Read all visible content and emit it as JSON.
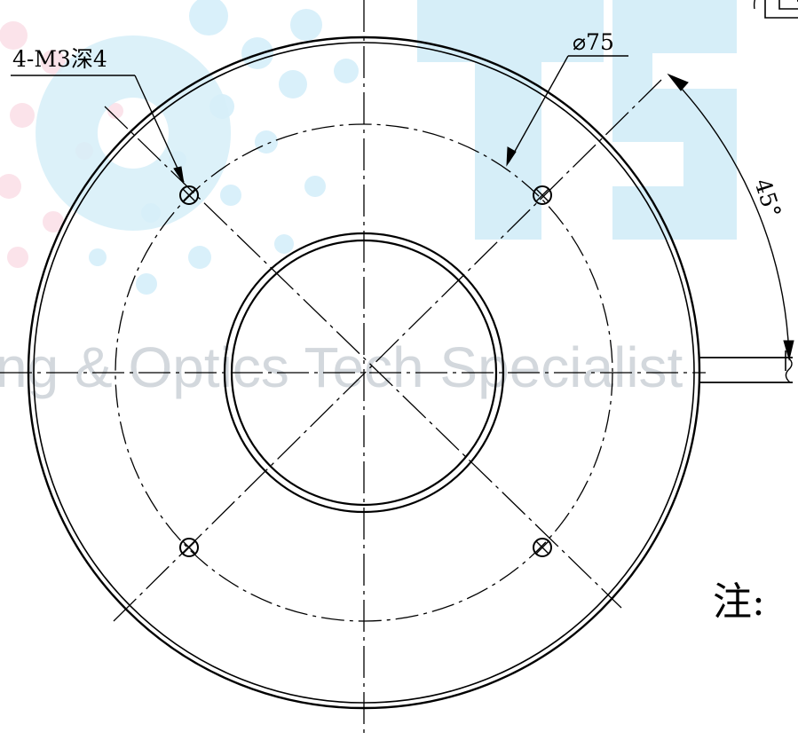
{
  "watermark": {
    "logo_letters": "OTS",
    "tagline": "ng & Optics Tech Specialist",
    "color_logo": "#d6eef8",
    "color_dots_pink": "#fbe3ea",
    "color_dots_blue": "#d9f0fa",
    "color_tagline": "#d3d8dd"
  },
  "annotations": {
    "hole_callout": "4-M3深4",
    "pcd_dimension": "⌀75",
    "angle_dimension": "45°",
    "note_label": "注:"
  },
  "colors": {
    "line": "#000000",
    "background": "#ffffff"
  }
}
